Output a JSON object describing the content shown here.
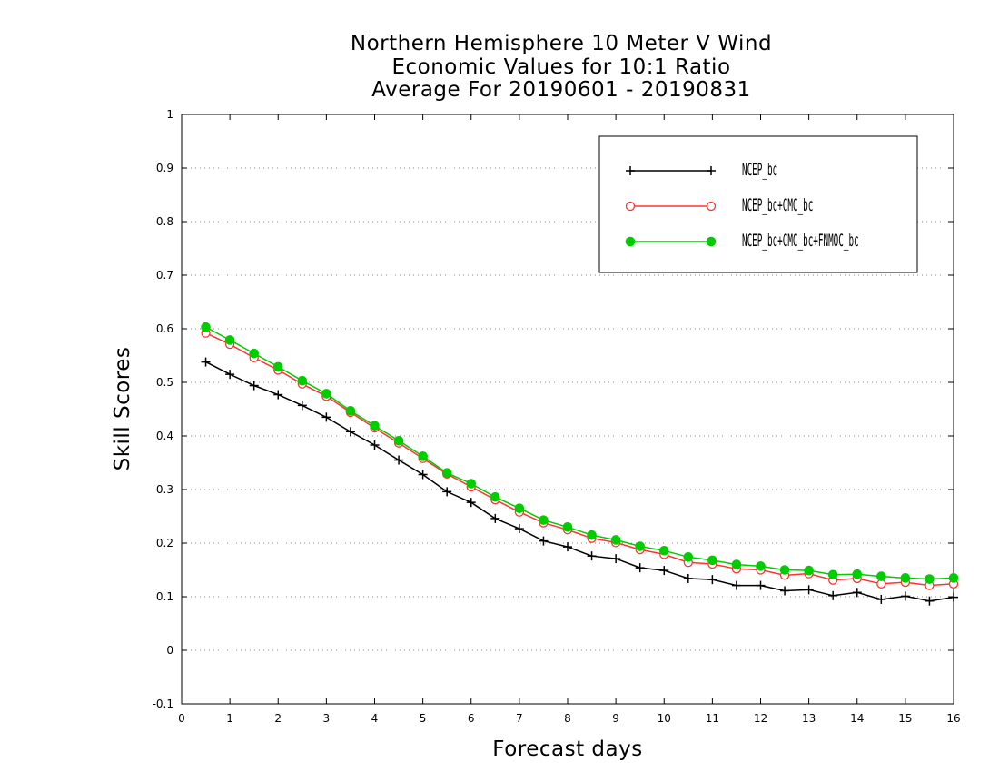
{
  "chart_data": {
    "type": "line",
    "title_lines": [
      "Northern Hemisphere 10 Meter V Wind",
      "Economic Values for 10:1 Ratio",
      "Average For 20190601 - 20190831"
    ],
    "xlabel": "Forecast days",
    "ylabel": "Skill Scores",
    "xlim": [
      0,
      16
    ],
    "ylim": [
      -0.1,
      1
    ],
    "xticks": [
      0,
      1,
      2,
      3,
      4,
      5,
      6,
      7,
      8,
      9,
      10,
      11,
      12,
      13,
      14,
      15,
      16
    ],
    "yticks": [
      -0.1,
      0,
      0.1,
      0.2,
      0.3,
      0.4,
      0.5,
      0.6,
      0.7,
      0.8,
      0.9,
      1
    ],
    "ytick_labels": [
      "-0.1",
      "0",
      "0.1",
      "0.2",
      "0.3",
      "0.4",
      "0.5",
      "0.6",
      "0.7",
      "0.8",
      "0.9",
      "1"
    ],
    "grid": "horizontal dotted",
    "legend_position": "top-right",
    "x": [
      0.5,
      1,
      1.5,
      2,
      2.5,
      3,
      3.5,
      4,
      4.5,
      5,
      5.5,
      6,
      6.5,
      7,
      7.5,
      8,
      8.5,
      9,
      9.5,
      10,
      10.5,
      11,
      11.5,
      12,
      12.5,
      13,
      13.5,
      14,
      14.5,
      15,
      15.5,
      16
    ],
    "series": [
      {
        "name": "NCEP_bc",
        "color": "#000000",
        "marker": "plus",
        "values": [
          0.538,
          0.515,
          0.494,
          0.477,
          0.457,
          0.435,
          0.408,
          0.383,
          0.355,
          0.328,
          0.296,
          0.276,
          0.246,
          0.227,
          0.204,
          0.193,
          0.176,
          0.171,
          0.154,
          0.149,
          0.134,
          0.132,
          0.121,
          0.121,
          0.111,
          0.113,
          0.102,
          0.108,
          0.095,
          0.101,
          0.092,
          0.099
        ]
      },
      {
        "name": "NCEP_bc+CMC_bc",
        "color": "#ff3333",
        "marker": "open-circle",
        "values": [
          0.592,
          0.571,
          0.546,
          0.523,
          0.497,
          0.474,
          0.444,
          0.415,
          0.387,
          0.358,
          0.329,
          0.305,
          0.281,
          0.258,
          0.238,
          0.225,
          0.209,
          0.201,
          0.188,
          0.179,
          0.164,
          0.161,
          0.152,
          0.15,
          0.14,
          0.143,
          0.131,
          0.134,
          0.124,
          0.127,
          0.121,
          0.124
        ]
      },
      {
        "name": "NCEP_bc+CMC_bc+FNMOC_bc",
        "color": "#00cc00",
        "marker": "filled-circle",
        "values": [
          0.603,
          0.579,
          0.554,
          0.529,
          0.503,
          0.479,
          0.447,
          0.419,
          0.391,
          0.362,
          0.331,
          0.311,
          0.286,
          0.265,
          0.243,
          0.23,
          0.215,
          0.206,
          0.194,
          0.186,
          0.174,
          0.168,
          0.16,
          0.157,
          0.15,
          0.149,
          0.141,
          0.142,
          0.138,
          0.135,
          0.133,
          0.135
        ]
      }
    ]
  }
}
